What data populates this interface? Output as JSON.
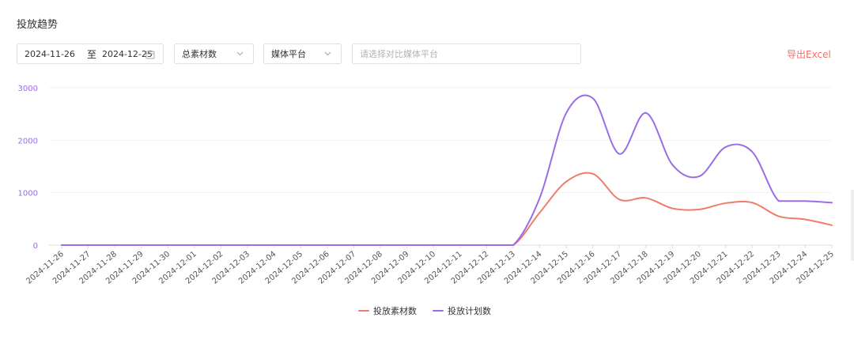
{
  "panel": {
    "title": "投放趋势"
  },
  "filters": {
    "date_start": "2024-11-26",
    "date_separator": "至",
    "date_end": "2024-12-25",
    "material_select": "总素材数",
    "platform_select": "媒体平台",
    "compare_placeholder": "请选择对比媒体平台"
  },
  "actions": {
    "export_label": "导出Excel"
  },
  "colors": {
    "accent_red": "#f56c6c",
    "material": "#f07c69",
    "plan": "#9a6ce6",
    "axis_label": "#9a6ce6"
  },
  "chart_data": {
    "type": "line",
    "title": "",
    "xlabel": "",
    "ylabel": "",
    "ylim": [
      0,
      3000
    ],
    "y_ticks": [
      "0",
      "1000",
      "2000",
      "3000"
    ],
    "grid": true,
    "legend_position": "bottom-center",
    "categories": [
      "2024-11-26",
      "2024-11-27",
      "2024-11-28",
      "2024-11-29",
      "2024-11-30",
      "2024-12-01",
      "2024-12-02",
      "2024-12-03",
      "2024-12-04",
      "2024-12-05",
      "2024-12-06",
      "2024-12-07",
      "2024-12-08",
      "2024-12-09",
      "2024-12-10",
      "2024-12-11",
      "2024-12-12",
      "2024-12-13",
      "2024-12-14",
      "2024-12-15",
      "2024-12-16",
      "2024-12-17",
      "2024-12-18",
      "2024-12-19",
      "2024-12-20",
      "2024-12-21",
      "2024-12-22",
      "2024-12-23",
      "2024-12-24",
      "2024-12-25"
    ],
    "series": [
      {
        "name": "投放素材数",
        "color": "#f07c69",
        "values": [
          0,
          0,
          0,
          0,
          0,
          0,
          0,
          0,
          0,
          0,
          0,
          0,
          0,
          0,
          0,
          0,
          0,
          0,
          620,
          1210,
          1360,
          870,
          900,
          700,
          680,
          800,
          810,
          550,
          490,
          380
        ]
      },
      {
        "name": "投放计划数",
        "color": "#9a6ce6",
        "values": [
          0,
          0,
          0,
          0,
          0,
          0,
          0,
          0,
          0,
          0,
          0,
          0,
          0,
          0,
          0,
          0,
          0,
          0,
          900,
          2520,
          2800,
          1740,
          2520,
          1530,
          1310,
          1870,
          1780,
          840,
          840,
          810
        ]
      }
    ]
  }
}
